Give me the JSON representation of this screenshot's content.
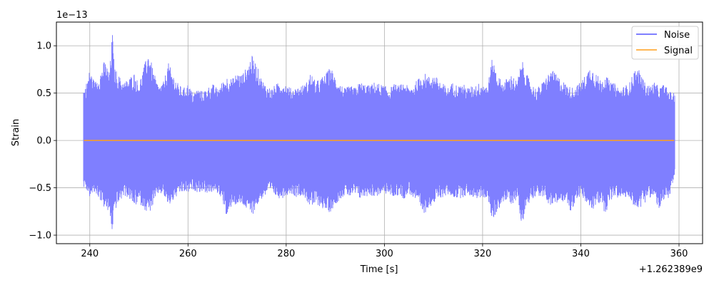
{
  "chart_data": {
    "type": "line",
    "xlabel": "Time [s]",
    "ylabel": "Strain",
    "x_offset_label": "+1.262389e9",
    "y_scale_label": "1e−13",
    "xlim": [
      233.2,
      364.8
    ],
    "ylim": [
      -1.09,
      1.25
    ],
    "x_ticks": [
      240,
      260,
      280,
      300,
      320,
      340,
      360
    ],
    "x_tick_labels": [
      "240",
      "260",
      "280",
      "300",
      "320",
      "340",
      "360"
    ],
    "y_ticks": [
      -1.0,
      -0.5,
      0.0,
      0.5,
      1.0
    ],
    "y_tick_labels": [
      "−1.0",
      "−0.5",
      "0.0",
      "0.5",
      "1.0"
    ],
    "grid": true,
    "legend_position": "top-right",
    "series": [
      {
        "name": "Noise",
        "color": "#7f7fff",
        "time_range": [
          238.8,
          359.0
        ],
        "envelope_upper": [
          [
            239,
            0.55
          ],
          [
            240,
            0.75
          ],
          [
            241,
            0.62
          ],
          [
            242,
            0.7
          ],
          [
            243,
            0.85
          ],
          [
            244,
            0.72
          ],
          [
            244.6,
            1.15
          ],
          [
            245,
            0.78
          ],
          [
            246,
            0.68
          ],
          [
            247,
            0.62
          ],
          [
            248,
            0.66
          ],
          [
            249,
            0.72
          ],
          [
            250,
            0.6
          ],
          [
            251,
            0.78
          ],
          [
            252,
            0.95
          ],
          [
            253,
            0.72
          ],
          [
            254,
            0.58
          ],
          [
            255,
            0.62
          ],
          [
            256,
            0.82
          ],
          [
            257,
            0.7
          ],
          [
            258,
            0.6
          ],
          [
            259,
            0.55
          ],
          [
            260,
            0.6
          ],
          [
            261,
            0.5
          ],
          [
            262,
            0.55
          ],
          [
            263,
            0.52
          ],
          [
            264,
            0.56
          ],
          [
            265,
            0.6
          ],
          [
            266,
            0.55
          ],
          [
            267,
            0.62
          ],
          [
            268,
            0.68
          ],
          [
            269,
            0.65
          ],
          [
            270,
            0.72
          ],
          [
            271,
            0.7
          ],
          [
            272,
            0.78
          ],
          [
            273,
            0.9
          ],
          [
            274,
            0.8
          ],
          [
            275,
            0.65
          ],
          [
            276,
            0.58
          ],
          [
            277,
            0.55
          ],
          [
            278,
            0.6
          ],
          [
            279,
            0.62
          ],
          [
            280,
            0.6
          ],
          [
            281,
            0.55
          ],
          [
            282,
            0.56
          ],
          [
            283,
            0.58
          ],
          [
            284,
            0.6
          ],
          [
            285,
            0.72
          ],
          [
            286,
            0.62
          ],
          [
            287,
            0.66
          ],
          [
            288,
            0.7
          ],
          [
            289,
            0.78
          ],
          [
            290,
            0.68
          ],
          [
            291,
            0.6
          ],
          [
            292,
            0.55
          ],
          [
            293,
            0.58
          ],
          [
            294,
            0.56
          ],
          [
            295,
            0.62
          ],
          [
            296,
            0.6
          ],
          [
            297,
            0.58
          ],
          [
            298,
            0.62
          ],
          [
            299,
            0.6
          ],
          [
            300,
            0.58
          ],
          [
            301,
            0.55
          ],
          [
            302,
            0.6
          ],
          [
            303,
            0.58
          ],
          [
            304,
            0.62
          ],
          [
            305,
            0.56
          ],
          [
            306,
            0.6
          ],
          [
            307,
            0.66
          ],
          [
            308,
            0.72
          ],
          [
            309,
            0.68
          ],
          [
            310,
            0.7
          ],
          [
            311,
            0.65
          ],
          [
            312,
            0.6
          ],
          [
            313,
            0.56
          ],
          [
            314,
            0.62
          ],
          [
            315,
            0.58
          ],
          [
            316,
            0.6
          ],
          [
            317,
            0.56
          ],
          [
            318,
            0.58
          ],
          [
            319,
            0.6
          ],
          [
            320,
            0.62
          ],
          [
            321,
            0.58
          ],
          [
            322,
            0.88
          ],
          [
            323,
            0.7
          ],
          [
            324,
            0.62
          ],
          [
            325,
            0.66
          ],
          [
            326,
            0.7
          ],
          [
            327,
            0.62
          ],
          [
            328,
            0.85
          ],
          [
            329,
            0.7
          ],
          [
            330,
            0.6
          ],
          [
            331,
            0.55
          ],
          [
            332,
            0.6
          ],
          [
            333,
            0.68
          ],
          [
            334,
            0.75
          ],
          [
            335,
            0.7
          ],
          [
            336,
            0.65
          ],
          [
            337,
            0.6
          ],
          [
            338,
            0.56
          ],
          [
            339,
            0.58
          ],
          [
            340,
            0.62
          ],
          [
            341,
            0.7
          ],
          [
            342,
            0.8
          ],
          [
            343,
            0.72
          ],
          [
            344,
            0.65
          ],
          [
            345,
            0.7
          ],
          [
            346,
            0.62
          ],
          [
            347,
            0.6
          ],
          [
            348,
            0.55
          ],
          [
            349,
            0.58
          ],
          [
            350,
            0.62
          ],
          [
            351,
            0.76
          ],
          [
            352,
            0.74
          ],
          [
            353,
            0.62
          ],
          [
            354,
            0.58
          ],
          [
            355,
            0.62
          ],
          [
            356,
            0.56
          ],
          [
            357,
            0.6
          ],
          [
            358,
            0.52
          ],
          [
            359,
            0.5
          ]
        ],
        "envelope_lower": [
          [
            239,
            -0.5
          ],
          [
            240,
            -0.6
          ],
          [
            241,
            -0.56
          ],
          [
            242,
            -0.62
          ],
          [
            243,
            -0.72
          ],
          [
            244,
            -0.78
          ],
          [
            244.6,
            -0.98
          ],
          [
            245,
            -0.75
          ],
          [
            246,
            -0.66
          ],
          [
            247,
            -0.58
          ],
          [
            248,
            -0.62
          ],
          [
            249,
            -0.7
          ],
          [
            250,
            -0.66
          ],
          [
            251,
            -0.72
          ],
          [
            252,
            -0.78
          ],
          [
            253,
            -0.68
          ],
          [
            254,
            -0.56
          ],
          [
            255,
            -0.58
          ],
          [
            256,
            -0.7
          ],
          [
            257,
            -0.64
          ],
          [
            258,
            -0.58
          ],
          [
            259,
            -0.55
          ],
          [
            260,
            -0.56
          ],
          [
            261,
            -0.52
          ],
          [
            262,
            -0.55
          ],
          [
            263,
            -0.54
          ],
          [
            264,
            -0.56
          ],
          [
            265,
            -0.55
          ],
          [
            266,
            -0.56
          ],
          [
            267,
            -0.62
          ],
          [
            268,
            -0.86
          ],
          [
            269,
            -0.66
          ],
          [
            270,
            -0.7
          ],
          [
            271,
            -0.68
          ],
          [
            272,
            -0.74
          ],
          [
            273,
            -0.8
          ],
          [
            274,
            -0.7
          ],
          [
            275,
            -0.62
          ],
          [
            276,
            -0.58
          ],
          [
            277,
            -0.55
          ],
          [
            278,
            -0.6
          ],
          [
            279,
            -0.62
          ],
          [
            280,
            -0.58
          ],
          [
            281,
            -0.56
          ],
          [
            282,
            -0.6
          ],
          [
            283,
            -0.58
          ],
          [
            284,
            -0.62
          ],
          [
            285,
            -0.72
          ],
          [
            286,
            -0.68
          ],
          [
            287,
            -0.7
          ],
          [
            288,
            -0.75
          ],
          [
            289,
            -0.76
          ],
          [
            290,
            -0.68
          ],
          [
            291,
            -0.62
          ],
          [
            292,
            -0.58
          ],
          [
            293,
            -0.6
          ],
          [
            294,
            -0.58
          ],
          [
            295,
            -0.62
          ],
          [
            296,
            -0.6
          ],
          [
            297,
            -0.58
          ],
          [
            298,
            -0.6
          ],
          [
            299,
            -0.58
          ],
          [
            300,
            -0.56
          ],
          [
            301,
            -0.58
          ],
          [
            302,
            -0.6
          ],
          [
            303,
            -0.58
          ],
          [
            304,
            -0.62
          ],
          [
            305,
            -0.56
          ],
          [
            306,
            -0.62
          ],
          [
            307,
            -0.7
          ],
          [
            308,
            -0.8
          ],
          [
            309,
            -0.7
          ],
          [
            310,
            -0.68
          ],
          [
            311,
            -0.62
          ],
          [
            312,
            -0.6
          ],
          [
            313,
            -0.58
          ],
          [
            314,
            -0.6
          ],
          [
            315,
            -0.62
          ],
          [
            316,
            -0.6
          ],
          [
            317,
            -0.58
          ],
          [
            318,
            -0.6
          ],
          [
            319,
            -0.62
          ],
          [
            320,
            -0.6
          ],
          [
            321,
            -0.62
          ],
          [
            322,
            -0.86
          ],
          [
            323,
            -0.75
          ],
          [
            324,
            -0.66
          ],
          [
            325,
            -0.64
          ],
          [
            326,
            -0.68
          ],
          [
            327,
            -0.62
          ],
          [
            328,
            -0.89
          ],
          [
            329,
            -0.7
          ],
          [
            330,
            -0.62
          ],
          [
            331,
            -0.58
          ],
          [
            332,
            -0.6
          ],
          [
            333,
            -0.64
          ],
          [
            334,
            -0.7
          ],
          [
            335,
            -0.68
          ],
          [
            336,
            -0.66
          ],
          [
            337,
            -0.62
          ],
          [
            338,
            -0.78
          ],
          [
            339,
            -0.62
          ],
          [
            340,
            -0.6
          ],
          [
            341,
            -0.66
          ],
          [
            342,
            -0.74
          ],
          [
            343,
            -0.72
          ],
          [
            344,
            -0.66
          ],
          [
            345,
            -0.78
          ],
          [
            346,
            -0.64
          ],
          [
            347,
            -0.6
          ],
          [
            348,
            -0.62
          ],
          [
            349,
            -0.6
          ],
          [
            350,
            -0.64
          ],
          [
            351,
            -0.7
          ],
          [
            352,
            -0.72
          ],
          [
            353,
            -0.66
          ],
          [
            354,
            -0.6
          ],
          [
            355,
            -0.62
          ],
          [
            356,
            -0.74
          ],
          [
            357,
            -0.66
          ],
          [
            358,
            -0.6
          ],
          [
            359,
            -0.4
          ]
        ]
      },
      {
        "name": "Signal",
        "color": "#ff9f1c",
        "time_range": [
          238.8,
          359.0
        ],
        "value": 0.0
      }
    ]
  }
}
